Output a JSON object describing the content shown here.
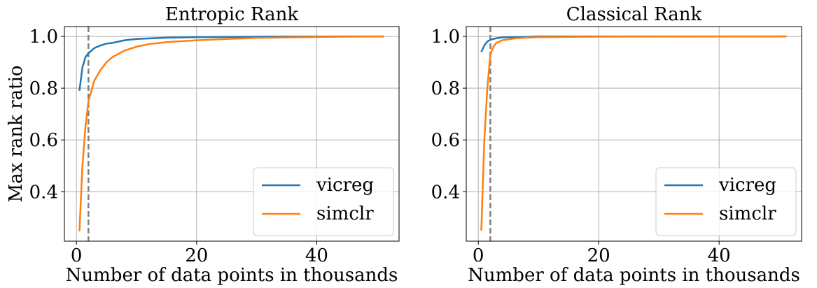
{
  "chart_data": [
    {
      "type": "line",
      "title": "Entropic Rank",
      "xlabel": "Number of data points in thousands",
      "ylabel": "Max rank ratio",
      "x": [
        0.5,
        1,
        1.5,
        2,
        3,
        4,
        5,
        6,
        8,
        10,
        12,
        15,
        20,
        25,
        30,
        40,
        51.2
      ],
      "series": [
        {
          "name": "vicreg",
          "color": "#1f77b4",
          "values": [
            0.79,
            0.88,
            0.92,
            0.935,
            0.955,
            0.965,
            0.972,
            0.975,
            0.985,
            0.99,
            0.992,
            0.995,
            0.997,
            0.998,
            0.999,
            0.9995,
            1.0
          ]
        },
        {
          "name": "simclr",
          "color": "#ff7f0e",
          "values": [
            0.247,
            0.5,
            0.65,
            0.75,
            0.83,
            0.87,
            0.9,
            0.92,
            0.945,
            0.96,
            0.97,
            0.978,
            0.985,
            0.99,
            0.994,
            0.998,
            1.0
          ]
        }
      ],
      "reference_line_x": 2,
      "reference_line_color": "#808080",
      "xlim": [
        -2.0,
        53.7
      ],
      "xticks": [
        0,
        20,
        40
      ],
      "ylim": [
        0.209,
        1.038
      ],
      "yticks": [
        0.4,
        0.6,
        0.8,
        {
          "value": 1.0,
          "label": "1.0"
        }
      ],
      "grid": true,
      "legend": "lower right"
    },
    {
      "type": "line",
      "title": "Classical Rank",
      "xlabel": "Number of data points in thousands",
      "x": [
        0.5,
        1,
        1.5,
        2,
        2.5,
        3,
        4,
        6,
        8,
        10,
        20,
        51.2
      ],
      "series": [
        {
          "name": "vicreg",
          "color": "#1f77b4",
          "values": [
            0.94,
            0.965,
            0.98,
            0.987,
            0.99,
            0.993,
            0.996,
            0.997,
            0.998,
            1.0,
            1.0,
            1.0
          ]
        },
        {
          "name": "simclr",
          "color": "#ff7f0e",
          "values": [
            0.25,
            0.6,
            0.8,
            0.93,
            0.96,
            0.975,
            0.985,
            0.992,
            0.995,
            0.997,
            0.999,
            1.0
          ]
        }
      ],
      "reference_line_x": 2,
      "reference_line_color": "#808080",
      "xlim": [
        -2.0,
        53.7
      ],
      "xticks": [
        0,
        20,
        40
      ],
      "ylim": [
        0.209,
        1.038
      ],
      "yticks": [
        0.4,
        0.6,
        0.8,
        {
          "value": 1.0,
          "label": "1.0"
        }
      ],
      "grid": true,
      "legend": "lower right"
    }
  ]
}
